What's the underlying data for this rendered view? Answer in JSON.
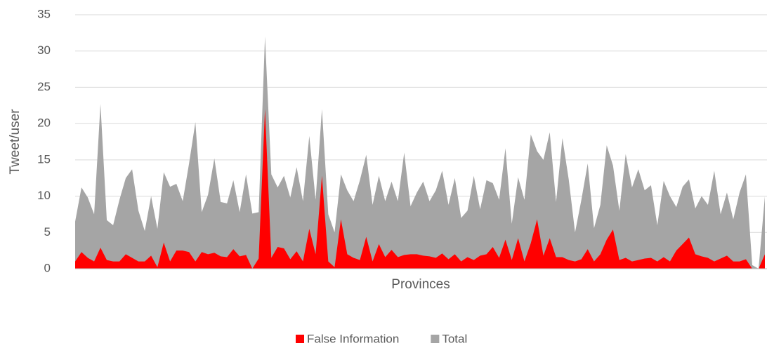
{
  "chart_data": {
    "type": "area",
    "xlabel": "Provinces",
    "ylabel": "Tweet/user",
    "categories": [
      null,
      null,
      null,
      null,
      null,
      null,
      null,
      null,
      null,
      null,
      null,
      null,
      null,
      null,
      null,
      null,
      null,
      null,
      null,
      null,
      null,
      null,
      null,
      null,
      null,
      null,
      null,
      null,
      null,
      null,
      null,
      null,
      null,
      null,
      null,
      null,
      null,
      null,
      null,
      null,
      null,
      null,
      null,
      null,
      null,
      null,
      null,
      null,
      null,
      null,
      null,
      null,
      null,
      null,
      null,
      null,
      null,
      null,
      null,
      null,
      null,
      null,
      null,
      null,
      null,
      null,
      null,
      null,
      null,
      null,
      null,
      null,
      null,
      null,
      null,
      null,
      null,
      null,
      null,
      null,
      null,
      null,
      null,
      null,
      null,
      null,
      null,
      null,
      null,
      null,
      null,
      null,
      null,
      null,
      null,
      null,
      null,
      null,
      null,
      null,
      null,
      null,
      null,
      null,
      null,
      null,
      null,
      null,
      null,
      null
    ],
    "series": [
      {
        "name": "Total",
        "color": "#a5a5a5",
        "values": [
          6.5,
          11.2,
          9.8,
          7.5,
          22.7,
          6.7,
          6.0,
          9.5,
          12.5,
          13.7,
          8,
          5.2,
          10,
          5.5,
          13.3,
          11.3,
          11.7,
          9.3,
          14.5,
          20.2,
          7.8,
          10.2,
          15.2,
          9.2,
          9,
          12.2,
          7.8,
          13,
          7.6,
          7.8,
          32,
          13,
          11.2,
          12.8,
          9.8,
          14,
          9.3,
          18.3,
          9.5,
          22,
          7.5,
          5,
          13,
          10.8,
          9.3,
          12.2,
          15.7,
          8.8,
          12.8,
          9.3,
          12,
          9.3,
          16,
          8.6,
          10.5,
          12,
          9.3,
          10.8,
          13.5,
          8.8,
          12.5,
          7,
          8,
          12.8,
          8.2,
          12.2,
          11.8,
          9.5,
          16.6,
          6.2,
          12.6,
          9.5,
          18.5,
          16.2,
          15,
          18.8,
          9.2,
          18,
          12.3,
          5,
          9.5,
          14.5,
          5.6,
          8.8,
          17,
          14.2,
          8,
          15.8,
          11.2,
          13.7,
          10.8,
          11.5,
          6,
          12.1,
          10,
          8.5,
          11.3,
          12.3,
          8.3,
          10,
          8.8,
          13.5,
          7.5,
          10.5,
          6.8,
          10.5,
          13,
          0.5,
          0,
          10
        ]
      },
      {
        "name": "False Information",
        "color": "#ff0000",
        "values": [
          1,
          2.3,
          1.5,
          1,
          2.9,
          1.2,
          1,
          1,
          2,
          1.5,
          1,
          1,
          1.8,
          0.2,
          3.6,
          1,
          2.5,
          2.5,
          2.3,
          1,
          2.3,
          2,
          2.2,
          1.7,
          1.6,
          2.7,
          1.7,
          1.9,
          0,
          1.4,
          22,
          1.5,
          3,
          2.8,
          1.3,
          2.4,
          1,
          5.5,
          2,
          12.8,
          1,
          0.2,
          6.8,
          2,
          1.5,
          1.2,
          4.4,
          1,
          3.4,
          1.6,
          2.6,
          1.6,
          1.9,
          2,
          2,
          1.8,
          1.7,
          1.5,
          2.1,
          1.3,
          2,
          1,
          1.6,
          1.2,
          1.8,
          2,
          3,
          1.5,
          4,
          1.2,
          4.2,
          1,
          3.5,
          6.8,
          1.8,
          4.2,
          1.6,
          1.6,
          1.2,
          1,
          1.3,
          2.7,
          1,
          2,
          4,
          5.4,
          1.2,
          1.5,
          1,
          1.2,
          1.4,
          1.5,
          1,
          1.6,
          1,
          2.5,
          3.4,
          4.3,
          2,
          1.7,
          1.5,
          1,
          1.4,
          1.8,
          1,
          1,
          1.3,
          0,
          0,
          2
        ]
      }
    ],
    "legend_order": [
      "False Information",
      "Total"
    ],
    "ylim": [
      0,
      35
    ],
    "yticks": [
      0,
      5,
      10,
      15,
      20,
      25,
      30,
      35
    ],
    "grid": true,
    "legend": "bottom"
  }
}
